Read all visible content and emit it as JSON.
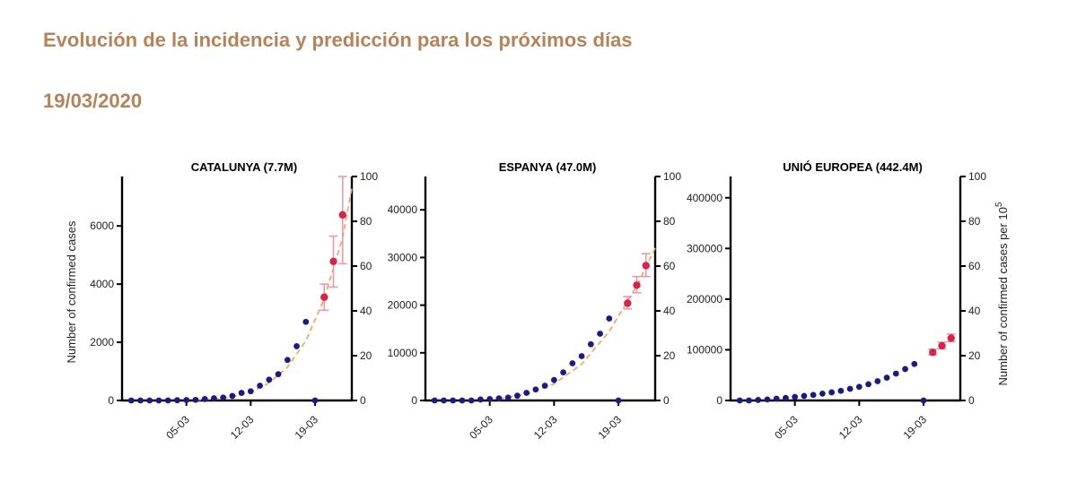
{
  "header": {
    "title": "Evolución de la incidencia y predicción para los próximos días",
    "date": "19/03/2020"
  },
  "colors": {
    "header_text": "#b5835a",
    "observed": "#1c1c80",
    "predicted": "#d4254e",
    "error_bar": "#e89aa8",
    "fit_line": "#f0a86a",
    "axis": "#000000"
  },
  "chart_data": [
    {
      "type": "scatter",
      "title": "CATALUNYA (7.7M)",
      "ylabel": "Number of confirmed cases",
      "y2label": "",
      "xlim": [
        "2020-02-27",
        "2020-03-23"
      ],
      "x_ticks": [
        "05-03",
        "12-03",
        "19-03"
      ],
      "x_tick_dates": [
        "2020-03-05",
        "2020-03-12",
        "2020-03-19"
      ],
      "ylim": [
        0,
        7700
      ],
      "y_ticks": [
        0,
        2000,
        4000,
        6000
      ],
      "y2lim": [
        0,
        100
      ],
      "y2_ticks": [
        0,
        20,
        40,
        60,
        80,
        100
      ],
      "observed": {
        "x": [
          "2020-02-28",
          "2020-02-29",
          "2020-03-01",
          "2020-03-02",
          "2020-03-03",
          "2020-03-04",
          "2020-03-05",
          "2020-03-06",
          "2020-03-07",
          "2020-03-08",
          "2020-03-09",
          "2020-03-10",
          "2020-03-11",
          "2020-03-12",
          "2020-03-13",
          "2020-03-14",
          "2020-03-15",
          "2020-03-16",
          "2020-03-17",
          "2020-03-18",
          "2020-03-19"
        ],
        "y": [
          0,
          0,
          0,
          0,
          0,
          10,
          15,
          24,
          49,
          75,
          101,
          156,
          260,
          316,
          509,
          715,
          903,
          1394,
          1866,
          2702,
          0
        ]
      },
      "predicted": {
        "x": [
          "2020-03-20",
          "2020-03-21",
          "2020-03-22"
        ],
        "y": [
          3550,
          4780,
          6380
        ],
        "y_low": [
          3100,
          3900,
          4700
        ],
        "y_high": [
          4000,
          5650,
          7700
        ]
      },
      "fit": {
        "x": [
          "2020-03-06",
          "2020-03-08",
          "2020-03-10",
          "2020-03-12",
          "2020-03-14",
          "2020-03-16",
          "2020-03-18",
          "2020-03-20",
          "2020-03-22",
          "2020-03-23"
        ],
        "y": [
          20,
          55,
          130,
          290,
          600,
          1150,
          2050,
          3500,
          5600,
          7300
        ]
      }
    },
    {
      "type": "scatter",
      "title": "ESPANYA (47.0M)",
      "ylabel": "",
      "y2label": "",
      "xlim": [
        "2020-02-27",
        "2020-03-23"
      ],
      "x_ticks": [
        "05-03",
        "12-03",
        "19-03"
      ],
      "x_tick_dates": [
        "2020-03-05",
        "2020-03-12",
        "2020-03-19"
      ],
      "ylim": [
        0,
        47000
      ],
      "y_ticks": [
        0,
        10000,
        20000,
        30000,
        40000
      ],
      "y2lim": [
        0,
        100
      ],
      "y2_ticks": [
        0,
        20,
        40,
        60,
        80,
        100
      ],
      "observed": {
        "x": [
          "2020-02-28",
          "2020-02-29",
          "2020-03-01",
          "2020-03-02",
          "2020-03-03",
          "2020-03-04",
          "2020-03-05",
          "2020-03-06",
          "2020-03-07",
          "2020-03-08",
          "2020-03-09",
          "2020-03-10",
          "2020-03-11",
          "2020-03-12",
          "2020-03-13",
          "2020-03-14",
          "2020-03-15",
          "2020-03-16",
          "2020-03-17",
          "2020-03-18",
          "2020-03-19"
        ],
        "y": [
          0,
          0,
          0,
          0,
          0,
          200,
          300,
          450,
          600,
          1000,
          1600,
          2300,
          3100,
          4300,
          5900,
          7800,
          9300,
          11800,
          14000,
          17200,
          0
        ]
      },
      "predicted": {
        "x": [
          "2020-03-20",
          "2020-03-21",
          "2020-03-22"
        ],
        "y": [
          20400,
          24200,
          28300
        ],
        "y_low": [
          19200,
          22600,
          26000
        ],
        "y_high": [
          21800,
          26000,
          30800
        ]
      },
      "fit": {
        "x": [
          "2020-03-06",
          "2020-03-09",
          "2020-03-12",
          "2020-03-15",
          "2020-03-18",
          "2020-03-21",
          "2020-03-23"
        ],
        "y": [
          400,
          1300,
          3500,
          7600,
          14500,
          24000,
          32000
        ]
      }
    },
    {
      "type": "scatter",
      "title": "UNIÓ EUROPEA (442.4M)",
      "ylabel": "",
      "y2label": "Number of confirmed cases per 10",
      "y2label_sup": "5",
      "xlim": [
        "2020-02-27",
        "2020-03-23"
      ],
      "x_ticks": [
        "05-03",
        "12-03",
        "19-03"
      ],
      "x_tick_dates": [
        "2020-03-05",
        "2020-03-12",
        "2020-03-19"
      ],
      "ylim": [
        0,
        442000
      ],
      "y_ticks": [
        0,
        100000,
        200000,
        300000,
        400000
      ],
      "y2lim": [
        0,
        100
      ],
      "y2_ticks": [
        0,
        20,
        40,
        60,
        80,
        100
      ],
      "observed": {
        "x": [
          "2020-02-28",
          "2020-02-29",
          "2020-03-01",
          "2020-03-02",
          "2020-03-03",
          "2020-03-04",
          "2020-03-05",
          "2020-03-06",
          "2020-03-07",
          "2020-03-08",
          "2020-03-09",
          "2020-03-10",
          "2020-03-11",
          "2020-03-12",
          "2020-03-13",
          "2020-03-14",
          "2020-03-15",
          "2020-03-16",
          "2020-03-17",
          "2020-03-18",
          "2020-03-19"
        ],
        "y": [
          0,
          0,
          1000,
          2000,
          3500,
          5000,
          7000,
          9000,
          11000,
          13500,
          16000,
          19000,
          23000,
          27000,
          32000,
          38000,
          45000,
          53000,
          62000,
          72000,
          0
        ]
      },
      "predicted": {
        "x": [
          "2020-03-20",
          "2020-03-21",
          "2020-03-22"
        ],
        "y": [
          95000,
          108000,
          123000
        ],
        "y_low": [
          90000,
          102000,
          116000
        ],
        "y_high": [
          101000,
          115000,
          131000
        ]
      },
      "fit": {
        "x": [],
        "y": []
      }
    }
  ]
}
